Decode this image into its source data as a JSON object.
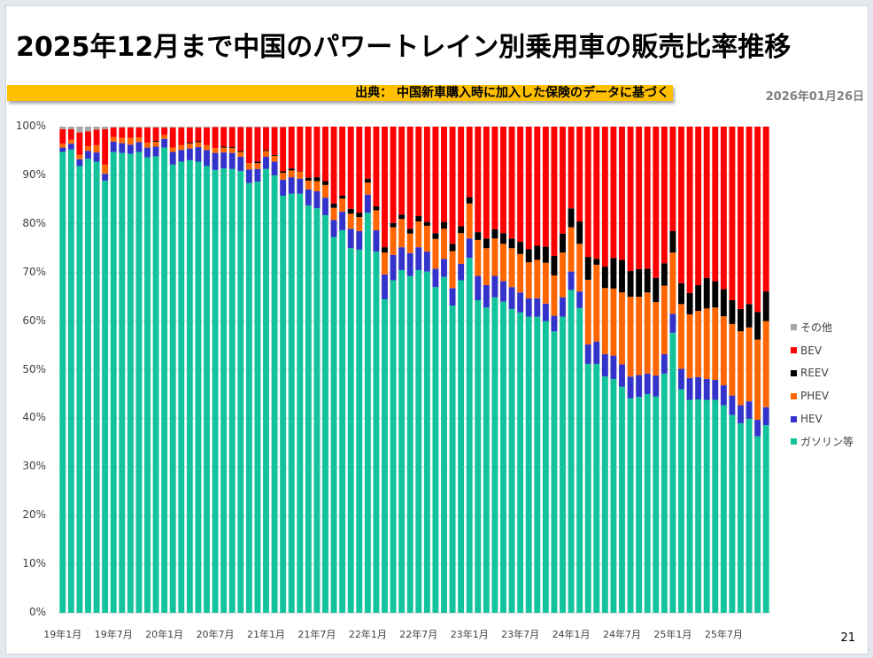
{
  "title": "2025年12月まで中国のパワートレイン別乗用車の販売比率推移",
  "source": "出典： 中国新車購入時に加入した保険のデータに基づく",
  "date": "2026年01月26日",
  "page_number": "21",
  "chart_data": {
    "type": "bar",
    "stacked": true,
    "normalized": true,
    "title": "",
    "xlabel": "",
    "ylabel": "",
    "ylim": [
      0,
      100
    ],
    "y_tick_labels": [
      "0%",
      "10%",
      "20%",
      "30%",
      "40%",
      "50%",
      "60%",
      "70%",
      "80%",
      "90%",
      "100%"
    ],
    "x_tick_labels": [
      "19年1月",
      "19年7月",
      "20年1月",
      "20年7月",
      "21年1月",
      "21年7月",
      "22年1月",
      "22年7月",
      "23年1月",
      "23年7月",
      "24年1月",
      "24年7月",
      "25年1月",
      "25年7月"
    ],
    "x_tick_every": 6,
    "legend_position": "right",
    "legend_order": [
      "その他",
      "BEV",
      "REEV",
      "PHEV",
      "HEV",
      "ガソリン等"
    ],
    "series": [
      {
        "name": "ガソリン等",
        "color": "#12c39b",
        "values": [
          94.8,
          95.3,
          91.9,
          93.4,
          92.8,
          88.9,
          94.8,
          94.6,
          94.4,
          94.8,
          93.7,
          93.9,
          95.7,
          92.2,
          92.8,
          93.1,
          92.8,
          91.9,
          91.1,
          91.4,
          91.3,
          90.9,
          88.4,
          88.7,
          91.3,
          90.0,
          85.8,
          86.2,
          86.2,
          83.8,
          83.2,
          81.8,
          77.3,
          78.7,
          75.0,
          74.7,
          82.3,
          74.3,
          64.5,
          68.4,
          70.5,
          69.3,
          70.5,
          70.2,
          67.0,
          69.1,
          63.2,
          68.4,
          73.0,
          64.3,
          62.8,
          64.9,
          64.0,
          62.5,
          61.8,
          60.9,
          60.9,
          60.0,
          57.9,
          60.9,
          66.4,
          62.7,
          51.2,
          51.2,
          48.6,
          48.1,
          46.5,
          44.1,
          44.4,
          45.0,
          44.5,
          49.2,
          57.6,
          46.0,
          43.8,
          43.9,
          43.8,
          43.8,
          42.7,
          40.7,
          39.0,
          39.9,
          36.3,
          38.6
        ]
      },
      {
        "name": "HEV",
        "color": "#3333cc",
        "values": [
          0.9,
          1.2,
          1.4,
          1.6,
          1.9,
          1.4,
          2.1,
          2.0,
          1.9,
          2.0,
          2.0,
          2.0,
          1.8,
          2.6,
          2.4,
          2.4,
          3.0,
          3.3,
          3.5,
          3.3,
          3.3,
          2.9,
          2.8,
          2.6,
          2.5,
          2.8,
          3.3,
          3.4,
          3.1,
          3.3,
          3.5,
          3.6,
          3.5,
          3.8,
          4.0,
          3.8,
          3.7,
          4.4,
          5.1,
          5.2,
          4.7,
          4.7,
          4.7,
          4.1,
          3.8,
          3.7,
          3.6,
          3.4,
          4.0,
          5.0,
          4.6,
          4.4,
          4.2,
          4.5,
          4.1,
          3.8,
          3.8,
          3.6,
          3.2,
          4.0,
          3.8,
          3.4,
          4.0,
          4.6,
          4.6,
          4.8,
          4.6,
          4.5,
          4.5,
          4.2,
          4.3,
          4.0,
          3.9,
          4.2,
          4.5,
          4.6,
          4.3,
          4.1,
          4.1,
          4.0,
          3.7,
          3.6,
          3.4,
          3.7
        ]
      },
      {
        "name": "PHEV",
        "color": "#ff6600",
        "values": [
          0.8,
          0.8,
          0.9,
          1.0,
          1.5,
          1.9,
          1.0,
          1.1,
          1.4,
          1.0,
          1.0,
          1.0,
          0.8,
          0.9,
          1.0,
          1.0,
          1.0,
          1.0,
          1.0,
          1.0,
          1.0,
          1.0,
          1.3,
          1.2,
          1.2,
          1.2,
          1.4,
          1.4,
          1.5,
          1.8,
          2.1,
          2.6,
          2.5,
          2.7,
          3.1,
          2.9,
          2.5,
          4.1,
          4.5,
          5.7,
          5.8,
          4.0,
          5.3,
          5.3,
          6.1,
          6.2,
          7.6,
          6.3,
          7.2,
          7.4,
          7.6,
          7.7,
          7.7,
          8.0,
          7.9,
          7.4,
          7.9,
          8.4,
          8.3,
          9.2,
          9.1,
          9.8,
          13.3,
          15.8,
          13.6,
          13.8,
          14.8,
          16.4,
          16.1,
          16.7,
          15.1,
          14.1,
          12.6,
          13.3,
          13.1,
          13.6,
          14.5,
          14.9,
          14.2,
          14.7,
          15.2,
          15.2,
          16.5,
          17.7
        ]
      },
      {
        "name": "REEV",
        "color": "#000000",
        "values": [
          0,
          0,
          0,
          0,
          0,
          0,
          0,
          0,
          0,
          0,
          0,
          0.2,
          0,
          0,
          0,
          0.2,
          0.2,
          0,
          0,
          0.2,
          0.2,
          0.2,
          0,
          0.3,
          0.2,
          0.2,
          0.3,
          0.4,
          0.1,
          0.6,
          0.8,
          0.8,
          0.9,
          0.6,
          1.0,
          0.9,
          0.8,
          0.8,
          1.1,
          0.9,
          0.9,
          1.0,
          1.1,
          0.8,
          1.2,
          1.4,
          1.5,
          1.4,
          1.3,
          1.6,
          2.0,
          1.9,
          2.2,
          2.0,
          2.5,
          2.7,
          2.9,
          3.3,
          4.0,
          3.9,
          3.9,
          4.6,
          4.7,
          1.2,
          4.4,
          6.3,
          6.7,
          5.3,
          5.7,
          4.9,
          5.0,
          4.6,
          4.4,
          4.3,
          4.4,
          5.3,
          6.3,
          5.4,
          5.6,
          4.9,
          4.6,
          4.8,
          5.7,
          6.1
        ]
      },
      {
        "name": "BEV",
        "color": "#ff0000",
        "values": [
          3.0,
          2.2,
          4.6,
          3.0,
          3.2,
          7.3,
          1.9,
          2.1,
          2.1,
          2.0,
          3.1,
          2.7,
          1.5,
          4.1,
          3.6,
          3.1,
          2.8,
          3.6,
          4.3,
          4.0,
          4.1,
          4.9,
          7.4,
          7.1,
          4.7,
          5.7,
          9.1,
          8.6,
          9.1,
          10.5,
          10.4,
          11.2,
          15.8,
          14.2,
          16.9,
          17.7,
          10.7,
          16.4,
          24.8,
          19.8,
          18.1,
          21.0,
          18.4,
          19.6,
          21.9,
          19.6,
          24.1,
          20.5,
          14.5,
          21.7,
          23.0,
          21.1,
          21.9,
          23.0,
          23.7,
          25.2,
          24.5,
          24.7,
          26.6,
          22.0,
          16.8,
          19.5,
          26.8,
          27.2,
          28.8,
          27.0,
          27.4,
          29.7,
          29.3,
          29.2,
          31.1,
          28.1,
          21.5,
          32.2,
          34.2,
          32.6,
          31.1,
          31.8,
          33.4,
          35.7,
          37.5,
          36.5,
          38.1,
          33.9
        ]
      },
      {
        "name": "その他",
        "color": "#a6a6a6",
        "values": [
          0.5,
          0.5,
          1.2,
          1.0,
          0.6,
          0.5,
          0.2,
          0.2,
          0.2,
          0.2,
          0.2,
          0.2,
          0.2,
          0.2,
          0.2,
          0.2,
          0.2,
          0.2,
          0.1,
          0.1,
          0.1,
          0.1,
          0.1,
          0.1,
          0.1,
          0.1,
          0.1,
          0,
          0,
          0,
          0,
          0,
          0,
          0,
          0,
          0,
          0,
          0,
          0,
          0,
          0,
          0,
          0,
          0,
          0,
          0,
          0,
          0,
          0,
          0,
          0,
          0,
          0,
          0,
          0,
          0,
          0,
          0,
          0,
          0,
          0,
          0,
          0,
          0,
          0,
          0,
          0,
          0,
          0,
          0,
          0,
          0,
          0,
          0,
          0,
          0,
          0,
          0,
          0,
          0,
          0,
          0,
          0,
          0
        ]
      }
    ]
  }
}
